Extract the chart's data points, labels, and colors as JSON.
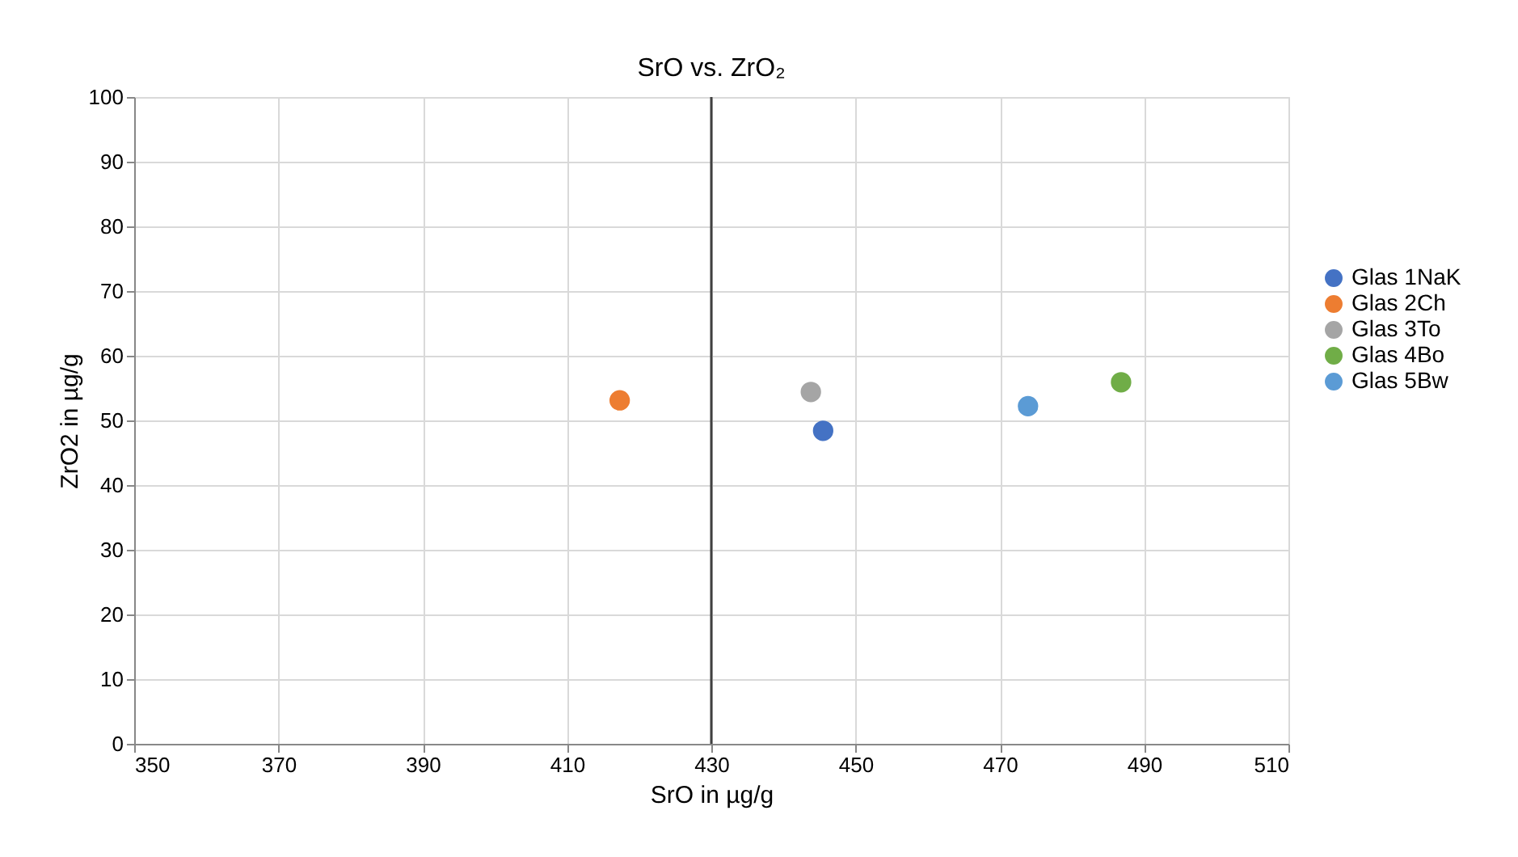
{
  "chart_data": {
    "type": "scatter",
    "title": "SrO vs. ZrO₂",
    "xlabel": "SrO in µg/g",
    "ylabel": "ZrO2 in µg/g",
    "series": [
      {
        "name": "Glas 1NaK",
        "color": "#4472c4",
        "x": [
          445.5
        ],
        "values": [
          48.4
        ]
      },
      {
        "name": "Glas 2Ch",
        "color": "#ed7d31",
        "x": [
          417.3
        ],
        "values": [
          53.1
        ]
      },
      {
        "name": "Glas 3To",
        "color": "#a5a5a5",
        "x": [
          443.8
        ],
        "values": [
          54.4
        ]
      },
      {
        "name": "Glas 4Bo",
        "color": "#70ad47",
        "x": [
          486.8
        ],
        "values": [
          55.9
        ]
      },
      {
        "name": "Glas 5Bw",
        "color": "#5b9bd5",
        "x": [
          473.9
        ],
        "values": [
          52.2
        ]
      }
    ],
    "xlim": [
      350,
      510
    ],
    "xticks": [
      350,
      370,
      390,
      410,
      430,
      450,
      470,
      490,
      510
    ],
    "ylim": [
      0,
      100
    ],
    "yticks": [
      0,
      10,
      20,
      30,
      40,
      50,
      60,
      70,
      80,
      90,
      100
    ],
    "ref_lines": [
      {
        "axis": "x",
        "value": 430,
        "color": "#404040"
      }
    ],
    "grid": true,
    "legend": "right",
    "marker": "circle"
  }
}
